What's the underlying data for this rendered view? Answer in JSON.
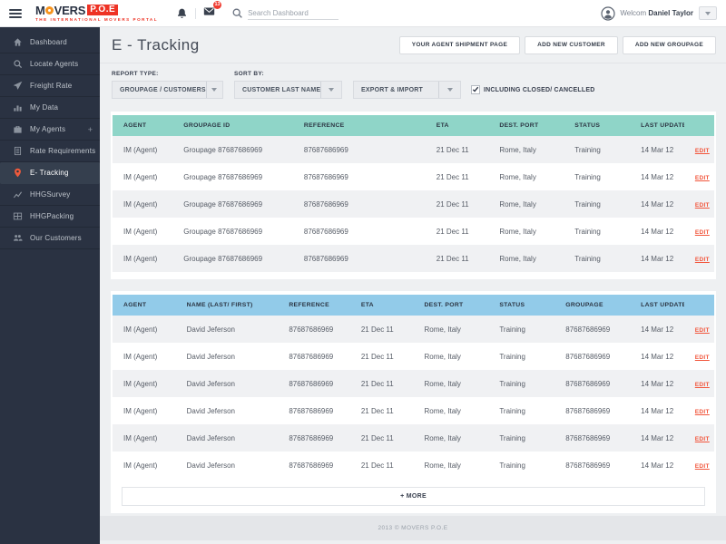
{
  "header": {
    "logo": {
      "brand_m": "M",
      "brand_vers": "VERS",
      "brand_box": "P.O.E",
      "tagline": "THE INTERNATIONAL MOVERS PORTAL"
    },
    "badge_count": "13",
    "search_placeholder": "Search Dashboard",
    "user": {
      "greeting": "Welcom",
      "name": "Daniel Taylor"
    }
  },
  "sidebar": {
    "items": [
      {
        "label": "Dashboard",
        "icon": "home-icon"
      },
      {
        "label": "Locate Agents",
        "icon": "search-icon"
      },
      {
        "label": "Freight Rate",
        "icon": "plane-icon"
      },
      {
        "label": "My Data",
        "icon": "bar-chart-icon"
      },
      {
        "label": "My Agents",
        "icon": "briefcase-icon",
        "suffix": "+"
      },
      {
        "label": "Rate Requirements",
        "icon": "document-icon"
      },
      {
        "label": "E- Tracking",
        "icon": "pin-icon",
        "active": true
      },
      {
        "label": "HHGSurvey",
        "icon": "line-chart-icon"
      },
      {
        "label": "HHGPacking",
        "icon": "grid-box-icon"
      },
      {
        "label": "Our Customers",
        "icon": "people-icon"
      }
    ]
  },
  "page": {
    "title": "E - Tracking",
    "actions": [
      "YOUR AGENT SHIPMENT PAGE",
      "ADD NEW CUSTOMER",
      "ADD NEW GROUPAGE"
    ],
    "filters": {
      "report_type_label": "REPORT TYPE:",
      "report_type_value": "GROUPAGE / CUSTOMERS",
      "sort_by_label": "SORT BY:",
      "sort_by_value": "CUSTOMER LAST NAME",
      "export_import_value": "EXPORT & IMPORT",
      "checkbox_label": "INCLUDING CLOSED/ CANCELLED",
      "checkbox_checked": true
    },
    "groupage_table": {
      "columns": [
        "AGENT",
        "GROUPAGE ID",
        "REFERENCE",
        "ETA",
        "DEST. PORT",
        "STATUS",
        "LAST UPDATE"
      ],
      "edit_label": "EDIT",
      "rows": [
        {
          "agent": "IM (Agent)",
          "groupage_id": "Groupage 87687686969",
          "reference": "87687686969",
          "eta": "21 Dec 11",
          "dest_port": "Rome, Italy",
          "status": "Training",
          "last_update": "14 Mar 12"
        },
        {
          "agent": "IM (Agent)",
          "groupage_id": "Groupage 87687686969",
          "reference": "87687686969",
          "eta": "21 Dec 11",
          "dest_port": "Rome, Italy",
          "status": "Training",
          "last_update": "14 Mar 12"
        },
        {
          "agent": "IM (Agent)",
          "groupage_id": "Groupage 87687686969",
          "reference": "87687686969",
          "eta": "21 Dec 11",
          "dest_port": "Rome, Italy",
          "status": "Training",
          "last_update": "14 Mar 12"
        },
        {
          "agent": "IM (Agent)",
          "groupage_id": "Groupage 87687686969",
          "reference": "87687686969",
          "eta": "21 Dec 11",
          "dest_port": "Rome, Italy",
          "status": "Training",
          "last_update": "14 Mar 12"
        },
        {
          "agent": "IM (Agent)",
          "groupage_id": "Groupage 87687686969",
          "reference": "87687686969",
          "eta": "21 Dec 11",
          "dest_port": "Rome, Italy",
          "status": "Training",
          "last_update": "14 Mar 12"
        }
      ]
    },
    "customer_table": {
      "columns": [
        "AGENT",
        "NAME (LAST/ FIRST)",
        "REFERENCE",
        "ETA",
        "DEST. PORT",
        "STATUS",
        "GROUPAGE",
        "LAST UPDATE"
      ],
      "edit_label": "EDIT",
      "rows": [
        {
          "agent": "IM (Agent)",
          "name": "David Jeferson",
          "reference": "87687686969",
          "eta": "21 Dec 11",
          "dest_port": "Rome, Italy",
          "status": "Training",
          "groupage": "87687686969",
          "last_update": "14 Mar 12"
        },
        {
          "agent": "IM (Agent)",
          "name": "David Jeferson",
          "reference": "87687686969",
          "eta": "21 Dec 11",
          "dest_port": "Rome, Italy",
          "status": "Training",
          "groupage": "87687686969",
          "last_update": "14 Mar 12"
        },
        {
          "agent": "IM (Agent)",
          "name": "David Jeferson",
          "reference": "87687686969",
          "eta": "21 Dec 11",
          "dest_port": "Rome, Italy",
          "status": "Training",
          "groupage": "87687686969",
          "last_update": "14 Mar 12"
        },
        {
          "agent": "IM (Agent)",
          "name": "David Jeferson",
          "reference": "87687686969",
          "eta": "21 Dec 11",
          "dest_port": "Rome, Italy",
          "status": "Training",
          "groupage": "87687686969",
          "last_update": "14 Mar 12"
        },
        {
          "agent": "IM (Agent)",
          "name": "David Jeferson",
          "reference": "87687686969",
          "eta": "21 Dec 11",
          "dest_port": "Rome, Italy",
          "status": "Training",
          "groupage": "87687686969",
          "last_update": "14 Mar 12"
        },
        {
          "agent": "IM (Agent)",
          "name": "David Jeferson",
          "reference": "87687686969",
          "eta": "21 Dec 11",
          "dest_port": "Rome, Italy",
          "status": "Training",
          "groupage": "87687686969",
          "last_update": "14 Mar 12"
        }
      ]
    },
    "more_label": "+ MORE"
  },
  "footer": {
    "copyright": "2013 © MOVERS P.O.E"
  },
  "colors": {
    "brand_red": "#ee3224",
    "brand_orange": "#f7941e",
    "sidebar_bg": "#2a3242",
    "active_pin": "#ee5a3c",
    "edit_link": "#f2563c",
    "table1_header": "#8fd5c8",
    "table2_header": "#92cbe9",
    "row_alt": "#f0f1f3",
    "badge_red": "#ef3b30",
    "content_bg": "#eef0f2"
  }
}
